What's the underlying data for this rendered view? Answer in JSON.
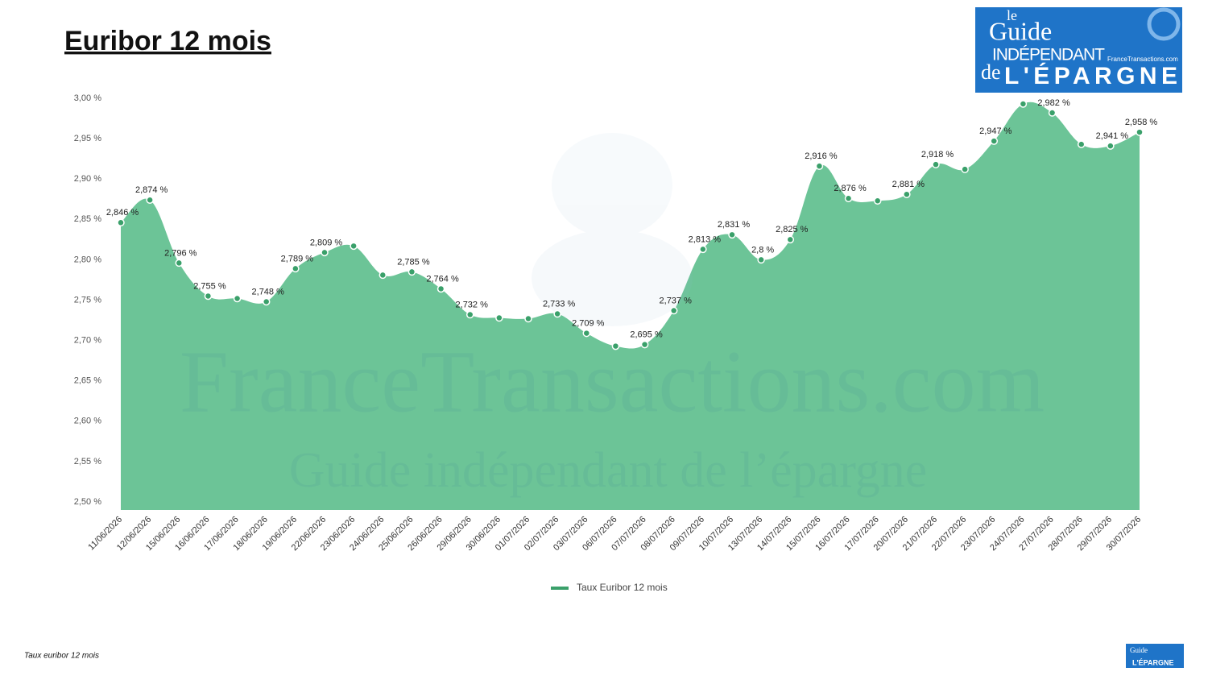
{
  "chart_data": {
    "type": "area",
    "title": "Euribor 12 mois",
    "logo": {
      "line1": "le",
      "line2": "Guide",
      "line3": "INDÉPENDANT",
      "line4": "de",
      "line5": "L'ÉPARGNE",
      "site": "FranceTransactions.com"
    },
    "watermark": [
      "FranceTransactions.com",
      "Guide indépendant de l’épargne"
    ],
    "footer": "Taux euribor 12 mois",
    "categories": [
      "11/06/2026",
      "12/06/2026",
      "15/06/2026",
      "16/06/2026",
      "17/06/2026",
      "18/06/2026",
      "19/06/2026",
      "22/06/2026",
      "23/06/2026",
      "24/06/2026",
      "25/06/2026",
      "26/06/2026",
      "29/06/2026",
      "30/06/2026",
      "01/07/2026",
      "02/07/2026",
      "03/07/2026",
      "06/07/2026",
      "07/07/2026",
      "08/07/2026",
      "09/07/2026",
      "10/07/2026",
      "13/07/2026",
      "14/07/2026",
      "15/07/2026",
      "16/07/2026",
      "17/07/2026",
      "20/07/2026",
      "21/07/2026",
      "22/07/2026",
      "23/07/2026",
      "24/07/2026",
      "27/07/2026",
      "28/07/2026",
      "29/07/2026",
      "30/07/2026"
    ],
    "series": [
      {
        "name": "Taux Euribor 12 mois",
        "color": "#6cc497",
        "line_color": "#3aa06a",
        "values": [
          2.846,
          2.874,
          2.796,
          2.755,
          2.752,
          2.748,
          2.789,
          2.809,
          2.817,
          2.781,
          2.785,
          2.764,
          2.732,
          2.728,
          2.727,
          2.733,
          2.709,
          2.693,
          2.695,
          2.737,
          2.813,
          2.831,
          2.8,
          2.825,
          2.916,
          2.876,
          2.873,
          2.881,
          2.918,
          2.912,
          2.947,
          2.993,
          2.982,
          2.943,
          2.941,
          2.958
        ],
        "value_labels": [
          "2,846 %",
          "2,874 %",
          "2,796 %",
          "2,755 %",
          null,
          "2,748 %",
          "2,789 %",
          "2,809 %",
          null,
          null,
          "2,785 %",
          "2,764 %",
          "2,732 %",
          null,
          null,
          "2,733 %",
          "2,709 %",
          null,
          "2,695 %",
          "2,737 %",
          "2,813 %",
          "2,831 %",
          "2,8 %",
          "2,825 %",
          "2,916 %",
          "2,876 %",
          null,
          "2,881 %",
          "2,918 %",
          null,
          "2,947 %",
          null,
          "2,982 %",
          null,
          "2,941 %",
          "2,958 %"
        ]
      }
    ],
    "ylim": [
      2.49,
      3.0
    ],
    "yticks": [
      {
        "value": 2.5,
        "label": "2,50 %"
      },
      {
        "value": 2.55,
        "label": "2,55 %"
      },
      {
        "value": 2.6,
        "label": "2,60 %"
      },
      {
        "value": 2.65,
        "label": "2,65 %"
      },
      {
        "value": 2.7,
        "label": "2,70 %"
      },
      {
        "value": 2.75,
        "label": "2,75 %"
      },
      {
        "value": 2.8,
        "label": "2,80 %"
      },
      {
        "value": 2.85,
        "label": "2,85 %"
      },
      {
        "value": 2.9,
        "label": "2,90 %"
      },
      {
        "value": 2.95,
        "label": "2,95 %"
      },
      {
        "value": 3.0,
        "label": "3,00 %"
      }
    ],
    "grid": false,
    "legend": "bottom"
  }
}
